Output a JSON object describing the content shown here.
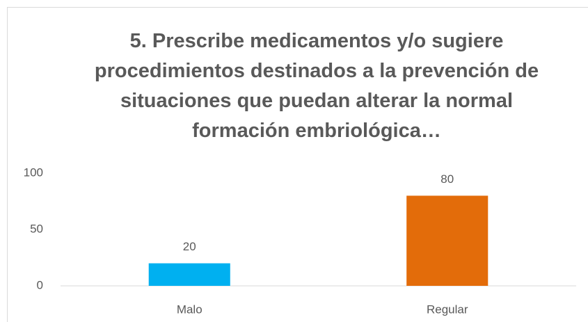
{
  "chart_data": {
    "type": "bar",
    "title": "5. Prescribe medicamentos y/o sugiere procedimientos destinados a la prevención de situaciones que puedan alterar la normal formación embriológica…",
    "categories": [
      "Malo",
      "Regular"
    ],
    "values": [
      20,
      80
    ],
    "colors": [
      "#00b0f0",
      "#e36c0a"
    ],
    "ylim": [
      0,
      100
    ],
    "yticks": [
      0,
      50,
      100
    ],
    "grid": false
  }
}
